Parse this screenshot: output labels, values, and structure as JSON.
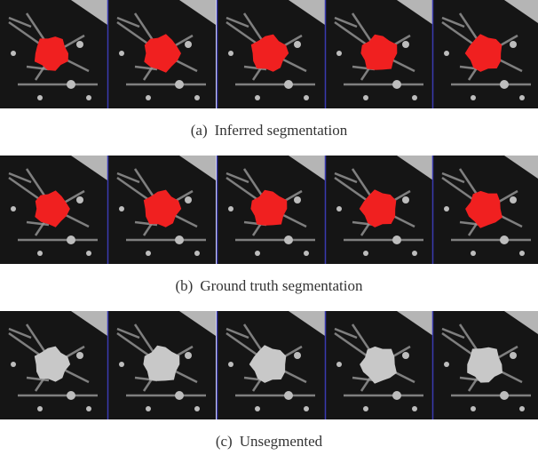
{
  "figure": {
    "rows": [
      {
        "label": "(a)",
        "caption": "Inferred segmentation"
      },
      {
        "label": "(b)",
        "caption": "Ground truth segmentation"
      },
      {
        "label": "(c)",
        "caption": "Unsegmented"
      }
    ]
  }
}
